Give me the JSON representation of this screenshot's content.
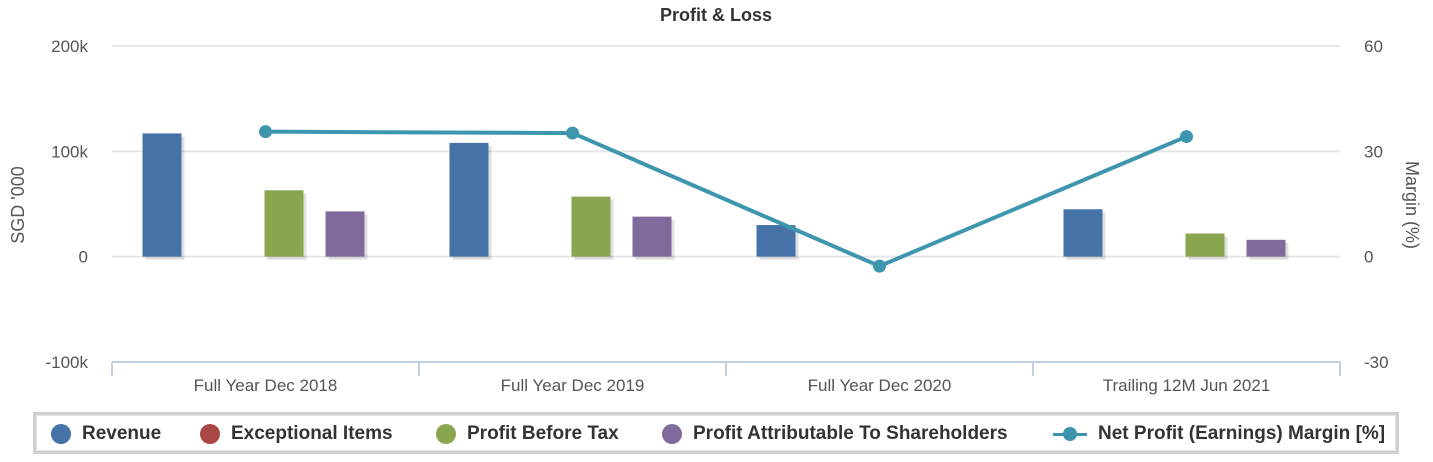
{
  "chart_data": {
    "type": "bar",
    "title": "Profit & Loss",
    "categories": [
      "Full Year Dec 2018",
      "Full Year Dec 2019",
      "Full Year Dec 2020",
      "Trailing 12M Jun 2021"
    ],
    "ylabel": "SGD '000",
    "ylabel_right": "Margin (%)",
    "ylim": [
      -100000,
      200000
    ],
    "ylim_right": [
      -30,
      60
    ],
    "yticks": [
      "200k",
      "100k",
      "0",
      "-100k"
    ],
    "yticks_right": [
      "60",
      "30",
      "0",
      "-30"
    ],
    "grid": true,
    "legend_position": "bottom",
    "series": [
      {
        "name": "Revenue",
        "type": "bar",
        "color": "#4572a7",
        "values": [
          117000,
          108000,
          30000,
          45000
        ]
      },
      {
        "name": "Exceptional Items",
        "type": "bar",
        "color": "#aa4643",
        "values": [
          0,
          0,
          0,
          0
        ]
      },
      {
        "name": "Profit Before Tax",
        "type": "bar",
        "color": "#89a54e",
        "values": [
          63000,
          57000,
          0,
          22000
        ]
      },
      {
        "name": "Profit Attributable To Shareholders",
        "type": "bar",
        "color": "#80699b",
        "values": [
          43000,
          38000,
          0,
          16000
        ]
      },
      {
        "name": "Net Profit (Earnings) Margin [%]",
        "type": "line",
        "axis": "right",
        "color": "#3d96ae",
        "values": [
          35.6,
          35.2,
          -2.7,
          34.2
        ]
      }
    ]
  }
}
